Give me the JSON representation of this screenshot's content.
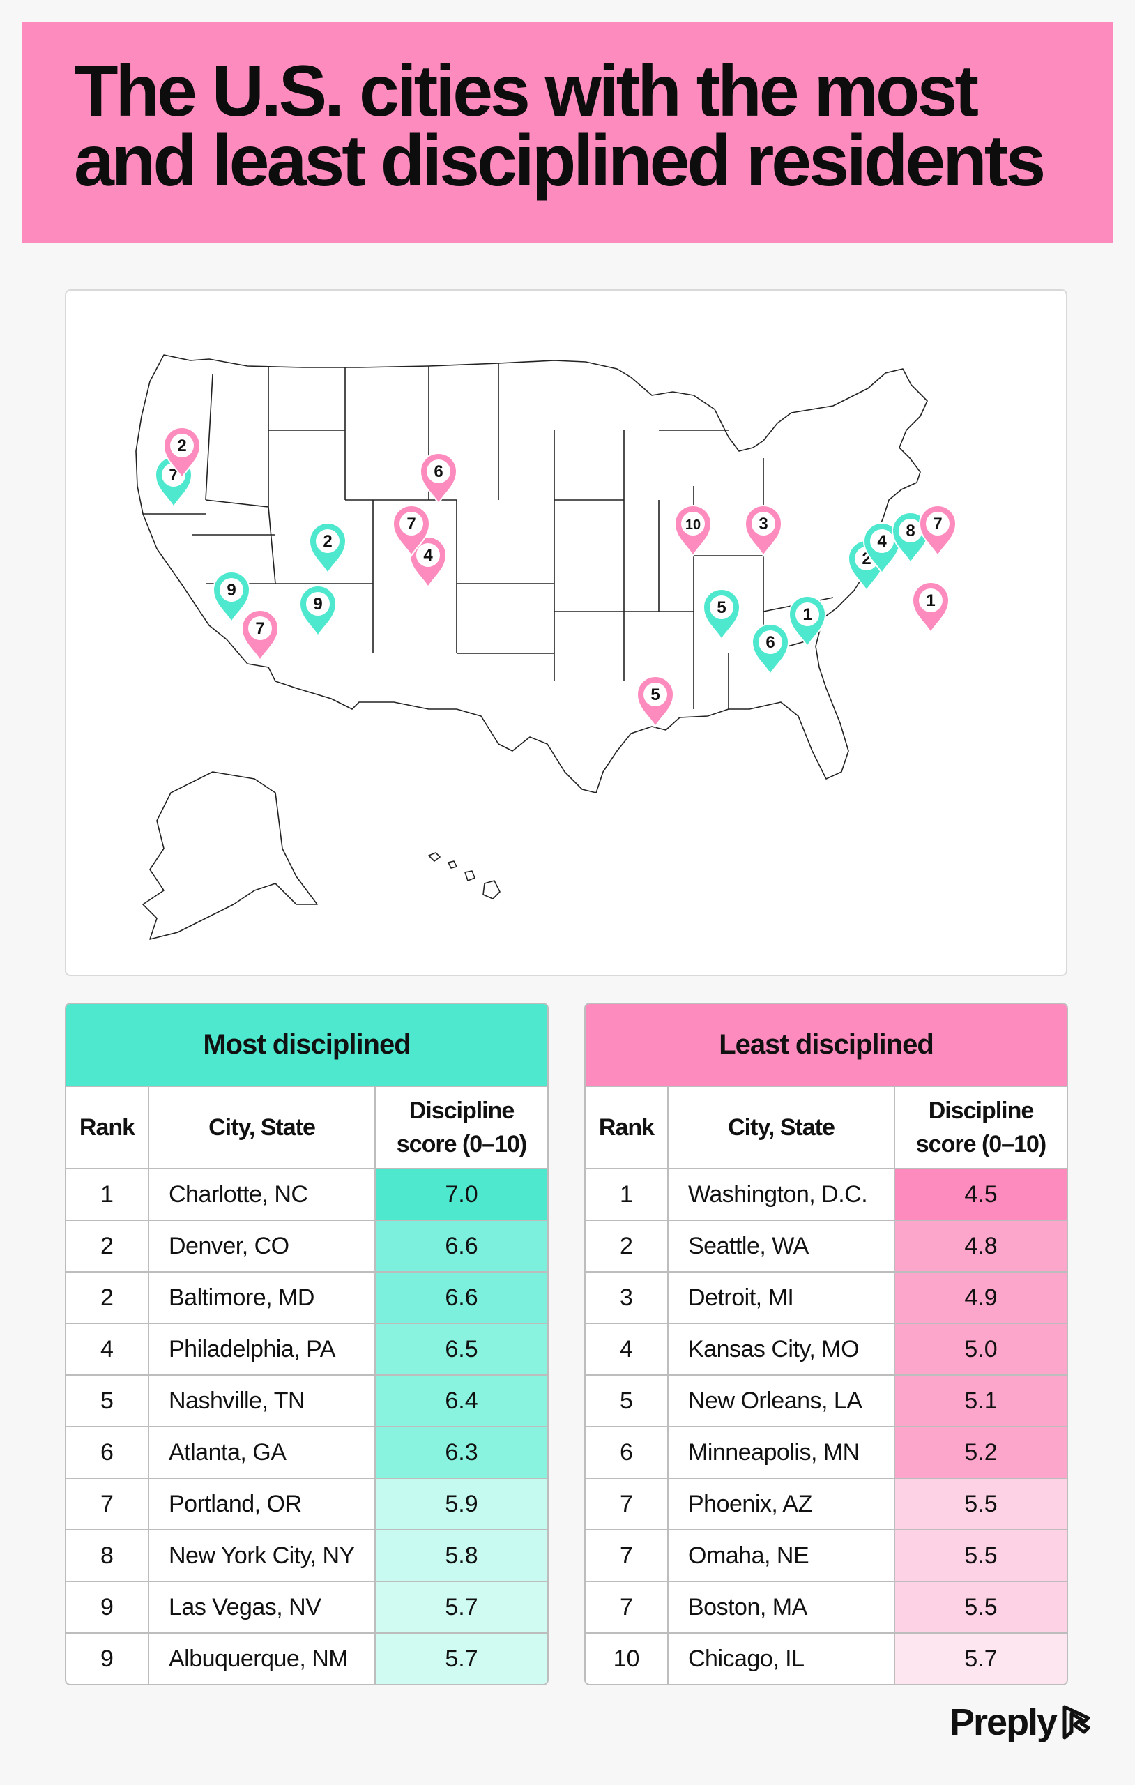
{
  "title": "The U.S. cities with the most and least disciplined residents",
  "colors": {
    "most": "#4ee8cf",
    "least": "#fd8bbd",
    "header": "#fd8bbd"
  },
  "map": {
    "most_markers": [
      {
        "rank": "1",
        "city": "Charlotte, NC"
      },
      {
        "rank": "2",
        "city": "Denver, CO"
      },
      {
        "rank": "2",
        "city": "Baltimore, MD"
      },
      {
        "rank": "4",
        "city": "Philadelphia, PA"
      },
      {
        "rank": "5",
        "city": "Nashville, TN"
      },
      {
        "rank": "6",
        "city": "Atlanta, GA"
      },
      {
        "rank": "7",
        "city": "Portland, OR"
      },
      {
        "rank": "8",
        "city": "New York City, NY"
      },
      {
        "rank": "9",
        "city": "Las Vegas, NV"
      },
      {
        "rank": "9",
        "city": "Albuquerque, NM"
      }
    ],
    "least_markers": [
      {
        "rank": "1",
        "city": "Washington, D.C."
      },
      {
        "rank": "2",
        "city": "Seattle, WA"
      },
      {
        "rank": "3",
        "city": "Detroit, MI"
      },
      {
        "rank": "4",
        "city": "Kansas City, MO"
      },
      {
        "rank": "5",
        "city": "New Orleans, LA"
      },
      {
        "rank": "6",
        "city": "Minneapolis, MN"
      },
      {
        "rank": "7",
        "city": "Phoenix, AZ"
      },
      {
        "rank": "7",
        "city": "Omaha, NE"
      },
      {
        "rank": "7",
        "city": "Boston, MA"
      },
      {
        "rank": "10",
        "city": "Chicago, IL"
      }
    ]
  },
  "most_table": {
    "heading": "Most disciplined",
    "col_rank": "Rank",
    "col_city": "City, State",
    "col_score_1": "Discipline",
    "col_score_2": "score (0–10)",
    "rows": [
      {
        "rank": "1",
        "city": "Charlotte, NC",
        "score": "7.0",
        "color": "#4ee8cf"
      },
      {
        "rank": "2",
        "city": "Denver, CO",
        "score": "6.6",
        "color": "#7cf0dc"
      },
      {
        "rank": "2",
        "city": "Baltimore, MD",
        "score": "6.6",
        "color": "#7cf0dc"
      },
      {
        "rank": "4",
        "city": "Philadelphia, PA",
        "score": "6.5",
        "color": "#8af3e0"
      },
      {
        "rank": "5",
        "city": "Nashville, TN",
        "score": "6.4",
        "color": "#8af3e0"
      },
      {
        "rank": "6",
        "city": "Atlanta, GA",
        "score": "6.3",
        "color": "#8af3e0"
      },
      {
        "rank": "7",
        "city": "Portland, OR",
        "score": "5.9",
        "color": "#c4faf0"
      },
      {
        "rank": "8",
        "city": "New York City, NY",
        "score": "5.8",
        "color": "#c8faf1"
      },
      {
        "rank": "9",
        "city": "Las Vegas, NV",
        "score": "5.7",
        "color": "#cffbf3"
      },
      {
        "rank": "9",
        "city": "Albuquerque, NM",
        "score": "5.7",
        "color": "#cffbf3"
      }
    ]
  },
  "least_table": {
    "heading": "Least disciplined",
    "col_rank": "Rank",
    "col_city": "City, State",
    "col_score_1": "Discipline",
    "col_score_2": "score (0–10)",
    "rows": [
      {
        "rank": "1",
        "city": "Washington, D.C.",
        "score": "4.5",
        "color": "#fd8bbd"
      },
      {
        "rank": "2",
        "city": "Seattle, WA",
        "score": "4.8",
        "color": "#fda6cc"
      },
      {
        "rank": "3",
        "city": "Detroit, MI",
        "score": "4.9",
        "color": "#fda6cc"
      },
      {
        "rank": "4",
        "city": "Kansas City, MO",
        "score": "5.0",
        "color": "#fda6cc"
      },
      {
        "rank": "5",
        "city": "New Orleans, LA",
        "score": "5.1",
        "color": "#fda6cc"
      },
      {
        "rank": "6",
        "city": "Minneapolis, MN",
        "score": "5.2",
        "color": "#fda6cc"
      },
      {
        "rank": "7",
        "city": "Phoenix, AZ",
        "score": "5.5",
        "color": "#fed2e5"
      },
      {
        "rank": "7",
        "city": "Omaha, NE",
        "score": "5.5",
        "color": "#fed2e5"
      },
      {
        "rank": "7",
        "city": "Boston, MA",
        "score": "5.5",
        "color": "#fed2e5"
      },
      {
        "rank": "10",
        "city": "Chicago, IL",
        "score": "5.7",
        "color": "#fee6f1"
      }
    ]
  },
  "logo": {
    "text": "Preply",
    "icon": "preply-logo-icon"
  }
}
